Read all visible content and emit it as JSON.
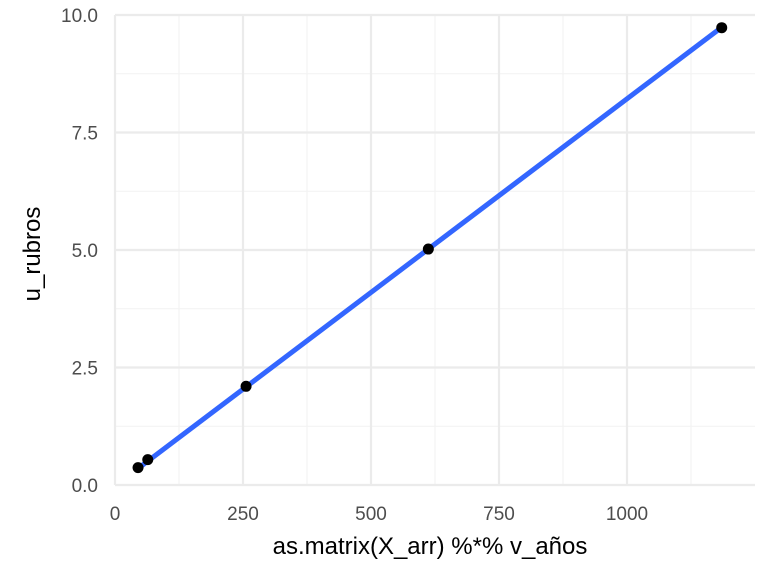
{
  "chart_data": {
    "type": "scatter",
    "title": "",
    "xlabel": "as.matrix(X_arr) %*% v_años",
    "ylabel": "u_rubros",
    "xlim": [
      0,
      1250
    ],
    "ylim": [
      0,
      10
    ],
    "x_ticks": [
      0,
      250,
      500,
      750,
      1000
    ],
    "x_tick_labels": [
      "0",
      "250",
      "500",
      "750",
      "1000"
    ],
    "y_ticks": [
      0,
      2.5,
      5,
      7.5,
      10
    ],
    "y_tick_labels": [
      "0.0",
      "2.5",
      "5.0",
      "7.5",
      "10.0"
    ],
    "grid": true,
    "series": [
      {
        "kind": "points",
        "color": "#000000",
        "points": [
          {
            "x": 45,
            "y": 0.37
          },
          {
            "x": 64,
            "y": 0.54
          },
          {
            "x": 256,
            "y": 2.1
          },
          {
            "x": 612,
            "y": 5.02
          },
          {
            "x": 1185,
            "y": 9.73
          }
        ]
      },
      {
        "kind": "fit-line",
        "color": "#3366FF",
        "points": [
          {
            "x": 45,
            "y": 0.35
          },
          {
            "x": 1185,
            "y": 9.74
          }
        ]
      }
    ]
  }
}
